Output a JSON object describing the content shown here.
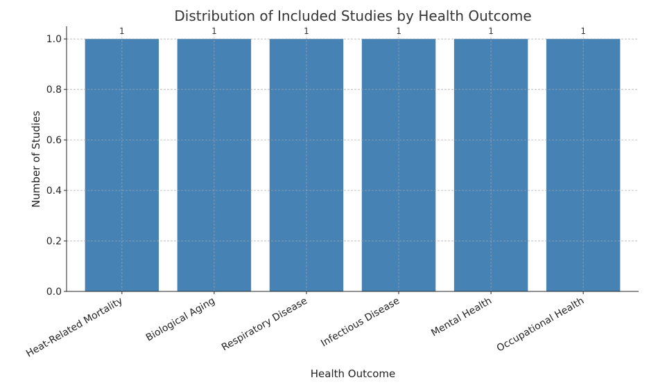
{
  "chart_data": {
    "type": "bar",
    "title": "Distribution of Included Studies by Health Outcome",
    "xlabel": "Health Outcome",
    "ylabel": "Number of Studies",
    "categories": [
      "Heat-Related Mortality",
      "Biological Aging",
      "Respiratory Disease",
      "Infectious Disease",
      "Mental Health",
      "Occupational Health"
    ],
    "values": [
      1,
      1,
      1,
      1,
      1,
      1
    ],
    "data_labels": [
      "1",
      "1",
      "1",
      "1",
      "1",
      "1"
    ],
    "ylim": [
      0,
      1.05
    ],
    "yticks": [
      0.0,
      0.2,
      0.4,
      0.6,
      0.8,
      1.0
    ],
    "ytick_labels": [
      "0.0",
      "0.2",
      "0.4",
      "0.6",
      "0.8",
      "1.0"
    ],
    "grid": true,
    "bar_color": "#4682b4"
  }
}
